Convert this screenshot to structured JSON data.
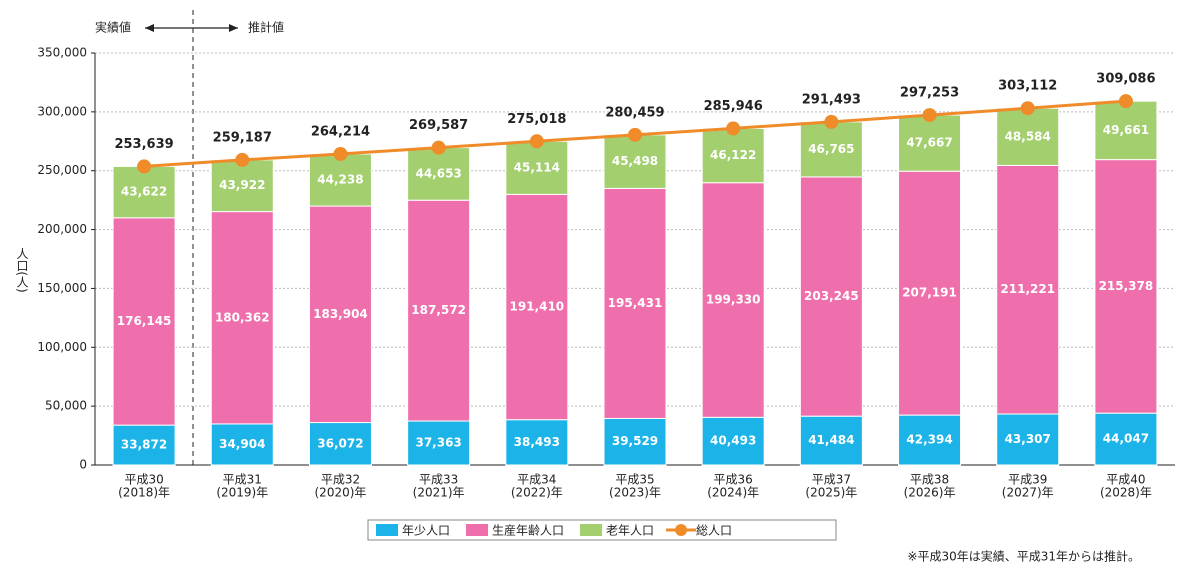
{
  "chart_data": {
    "type": "stacked-bar-line",
    "annotations": [
      "実績値",
      "推計値"
    ],
    "note": "※平成30年は実績、平成31年からは推計。",
    "ylabel": "人口(人)",
    "categories": [
      [
        "平成30",
        "(2018)年"
      ],
      [
        "平成31",
        "(2019)年"
      ],
      [
        "平成32",
        "(2020)年"
      ],
      [
        "平成33",
        "(2021)年"
      ],
      [
        "平成34",
        "(2022)年"
      ],
      [
        "平成35",
        "(2023)年"
      ],
      [
        "平成36",
        "(2024)年"
      ],
      [
        "平成37",
        "(2025)年"
      ],
      [
        "平成38",
        "(2026)年"
      ],
      [
        "平成39",
        "(2027)年"
      ],
      [
        "平成40",
        "(2028)年"
      ]
    ],
    "ylim": [
      0,
      350000
    ],
    "yticks": [
      0,
      {
        "value": 50000,
        "label": "50,000"
      },
      {
        "value": 100000,
        "label": "100,000"
      },
      {
        "value": 150000,
        "label": "150,000"
      },
      {
        "value": 200000,
        "label": "200,000"
      },
      {
        "value": 250000,
        "label": "250,000"
      },
      {
        "value": 300000,
        "label": "300,000"
      },
      {
        "value": 350000,
        "label": "350,000"
      }
    ],
    "series": [
      {
        "name": "年少人口",
        "color": "#1cb4e8",
        "kind": "bar",
        "values": [
          33872,
          34904,
          36072,
          37363,
          38493,
          39529,
          40493,
          41484,
          42394,
          43307,
          44047
        ],
        "value_labels": [
          "33,872",
          "34,904",
          "36,072",
          "37,363",
          "38,493",
          "39,529",
          "40,493",
          "41,484",
          "42,394",
          "43,307",
          "44,047"
        ]
      },
      {
        "name": "生産年齢人口",
        "color": "#ee6fab",
        "kind": "bar",
        "values": [
          176145,
          180362,
          183904,
          187572,
          191410,
          195431,
          199330,
          203245,
          207191,
          211221,
          215378
        ],
        "value_labels": [
          "176,145",
          "180,362",
          "183,904",
          "187,572",
          "191,410",
          "195,431",
          "199,330",
          "203,245",
          "207,191",
          "211,221",
          "215,378"
        ]
      },
      {
        "name": "老年人口",
        "color": "#a3cf6f",
        "kind": "bar",
        "values": [
          43622,
          43922,
          44238,
          44653,
          45114,
          45498,
          46122,
          46765,
          47667,
          48584,
          49661
        ],
        "value_labels": [
          "43,622",
          "43,922",
          "44,238",
          "44,653",
          "45,114",
          "45,498",
          "46,122",
          "46,765",
          "47,667",
          "48,584",
          "49,661"
        ]
      },
      {
        "name": "総人口",
        "color": "#f08b2a",
        "kind": "line",
        "values": [
          253639,
          259187,
          264214,
          269587,
          275018,
          280459,
          285946,
          291493,
          297253,
          303112,
          309086
        ],
        "value_labels": [
          "253,639",
          "259,187",
          "264,214",
          "269,587",
          "275,018",
          "280,459",
          "285,946",
          "291,493",
          "297,253",
          "303,112",
          "309,086"
        ]
      }
    ]
  }
}
